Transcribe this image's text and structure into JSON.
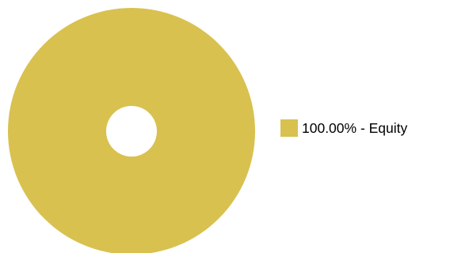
{
  "chart_data": {
    "type": "pie",
    "categories": [
      "Equity"
    ],
    "values": [
      100.0
    ],
    "colors": [
      "#d9c150"
    ],
    "legend": {
      "placement": "right",
      "entries": [
        "100.00% - Equity"
      ]
    },
    "donut": true
  }
}
